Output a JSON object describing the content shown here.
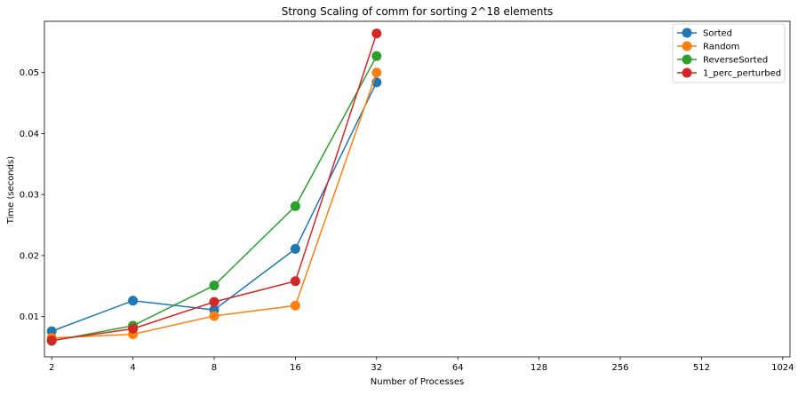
{
  "chart_data": {
    "type": "line",
    "title": "Strong Scaling of comm for sorting 2^18 elements",
    "xlabel": "Number of Processes",
    "ylabel": "Time (seconds)",
    "x_scale": "log2",
    "x_ticks": [
      2,
      4,
      8,
      16,
      32,
      64,
      128,
      256,
      512,
      1024
    ],
    "y_ticks": [
      0.01,
      0.02,
      0.03,
      0.04,
      0.05
    ],
    "ylim": [
      0.0034,
      0.0584
    ],
    "grid": false,
    "legend_position": "top-right",
    "series": [
      {
        "name": "Sorted",
        "color": "#1f77b4",
        "x": [
          2,
          4,
          8,
          16,
          32
        ],
        "values": [
          0.0076,
          0.0126,
          0.0111,
          0.0211,
          0.0484
        ]
      },
      {
        "name": "Random",
        "color": "#ff7f0e",
        "x": [
          2,
          4,
          8,
          16,
          32
        ],
        "values": [
          0.0065,
          0.0071,
          0.0101,
          0.0118,
          0.05
        ]
      },
      {
        "name": "ReverseSorted",
        "color": "#2ca02c",
        "x": [
          2,
          4,
          8,
          16,
          32
        ],
        "values": [
          0.006,
          0.0085,
          0.0151,
          0.0281,
          0.0527
        ]
      },
      {
        "name": "1_perc_perturbed",
        "color": "#d62728",
        "x": [
          2,
          4,
          8,
          16,
          32
        ],
        "values": [
          0.0061,
          0.008,
          0.0124,
          0.0158,
          0.0564
        ]
      }
    ]
  }
}
